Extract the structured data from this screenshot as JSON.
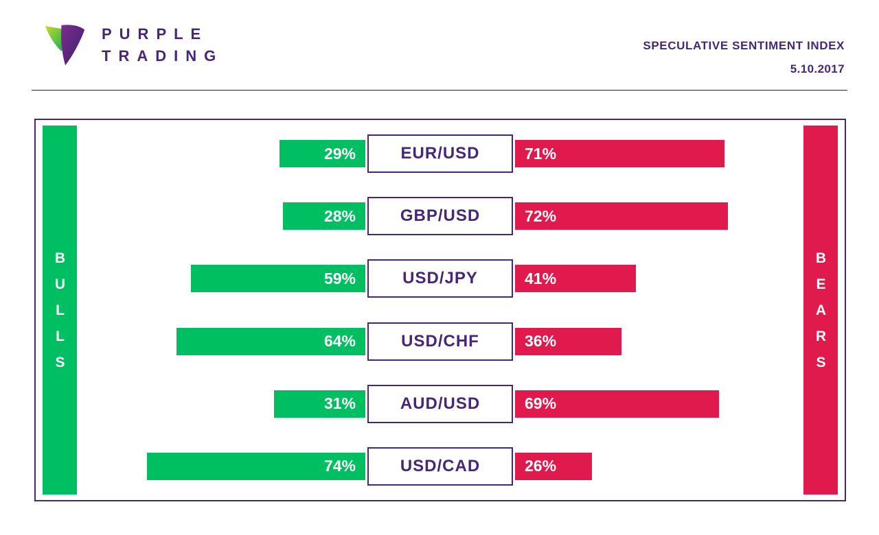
{
  "brand": {
    "line1": "PURPLE",
    "line2": "TRADING"
  },
  "header": {
    "title": "SPECULATIVE SENTIMENT INDEX",
    "date": "5.10.2017"
  },
  "sides": {
    "left": "BULLS",
    "right": "BEARS"
  },
  "colors": {
    "green": "#00BE62",
    "red": "#E11A4E",
    "purple": "#452677"
  },
  "chart_data": {
    "type": "bar",
    "title": "Speculative Sentiment Index",
    "subtitle": "5.10.2017",
    "orientation": "horizontal-diverging",
    "categories": [
      "EUR/USD",
      "GBP/USD",
      "USD/JPY",
      "USD/CHF",
      "AUD/USD",
      "USD/CAD"
    ],
    "series": [
      {
        "name": "Bulls %",
        "color": "#00BE62",
        "values": [
          29,
          28,
          59,
          64,
          31,
          74
        ]
      },
      {
        "name": "Bears %",
        "color": "#E11A4E",
        "values": [
          71,
          72,
          41,
          36,
          69,
          26
        ]
      }
    ],
    "xlim": [
      0,
      100
    ],
    "legend": "side bars labeled BULLS (left, green) and BEARS (right, red)",
    "pairs": [
      {
        "pair": "EUR/USD",
        "bulls_label": "29%",
        "bears_label": "71%",
        "bulls_pct": 29,
        "bears_pct": 71
      },
      {
        "pair": "GBP/USD",
        "bulls_label": "28%",
        "bears_label": "72%",
        "bulls_pct": 28,
        "bears_pct": 72
      },
      {
        "pair": "USD/JPY",
        "bulls_label": "59%",
        "bears_label": "41%",
        "bulls_pct": 59,
        "bears_pct": 41
      },
      {
        "pair": "USD/CHF",
        "bulls_label": "64%",
        "bears_label": "36%",
        "bulls_pct": 64,
        "bears_pct": 36
      },
      {
        "pair": "AUD/USD",
        "bulls_label": "31%",
        "bears_label": "69%",
        "bulls_pct": 31,
        "bears_pct": 69
      },
      {
        "pair": "USD/CAD",
        "bulls_label": "74%",
        "bears_label": "26%",
        "bulls_pct": 74,
        "bears_pct": 26
      }
    ]
  }
}
